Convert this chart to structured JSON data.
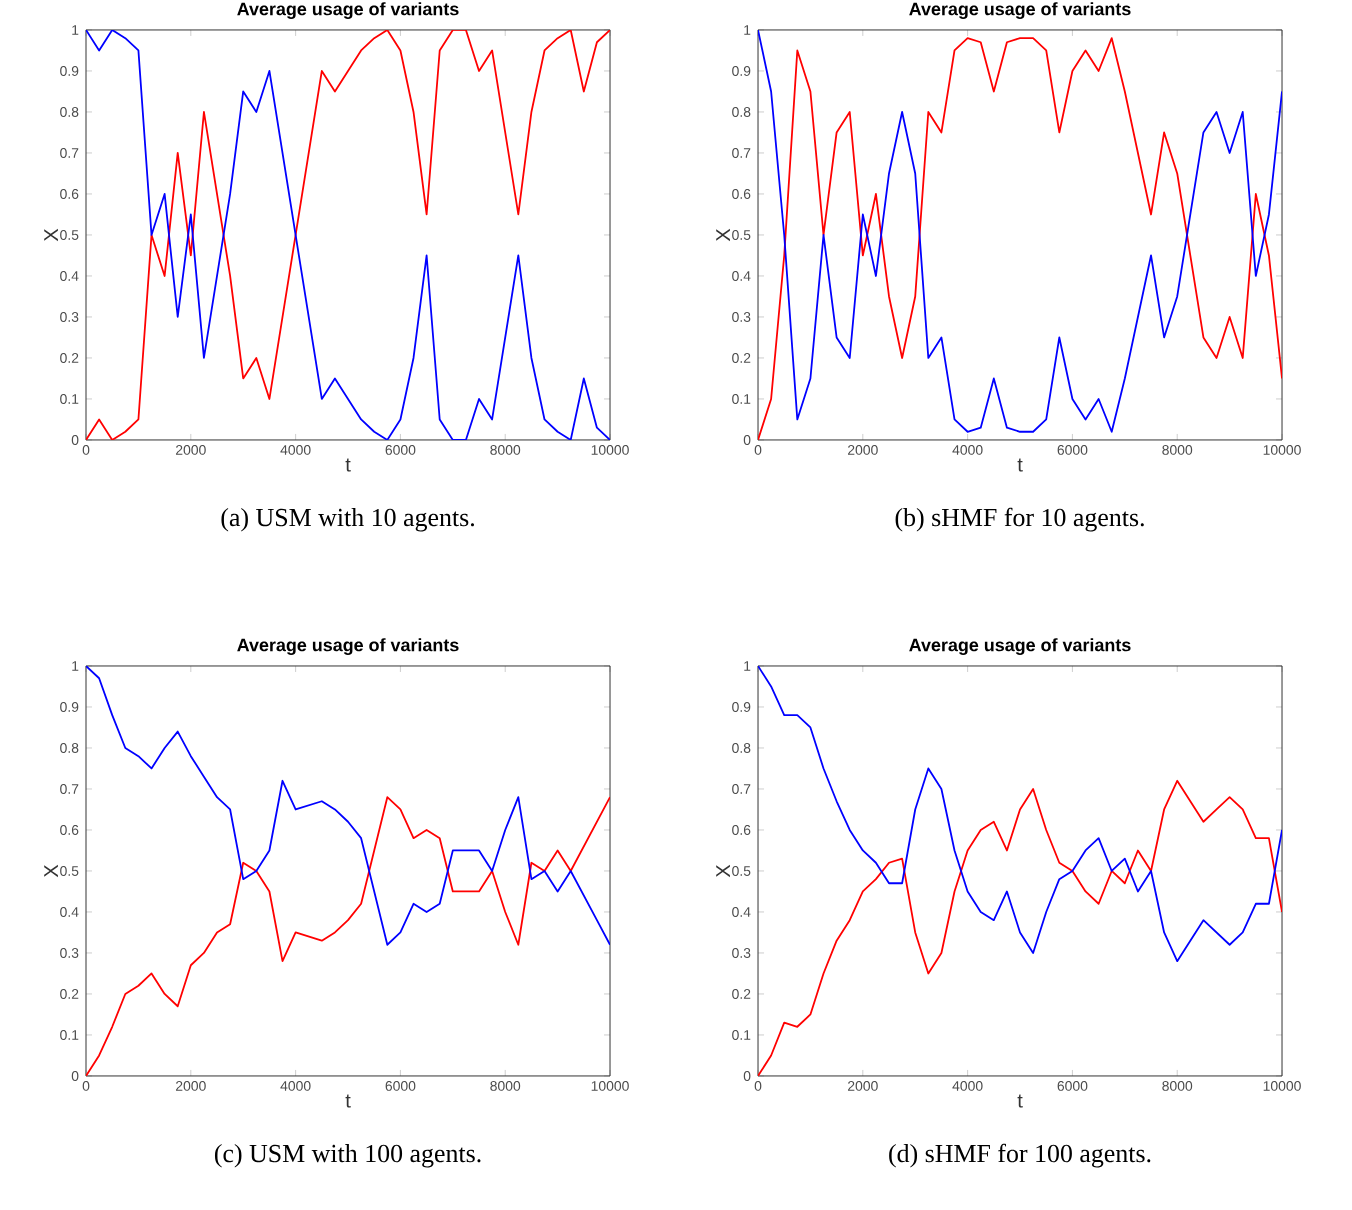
{
  "chart_data": [
    {
      "type": "line",
      "title": "Average usage of variants",
      "xlabel": "t",
      "ylabel": "X",
      "annotations": [
        "(a) USM with 10 agents."
      ],
      "xlim": [
        0,
        10000
      ],
      "ylim": [
        0,
        1
      ],
      "xticks": [
        0,
        2000,
        4000,
        6000,
        8000,
        10000
      ],
      "yticks": [
        0,
        0.1,
        0.2,
        0.3,
        0.4,
        0.5,
        0.6,
        0.7,
        0.8,
        0.9,
        1
      ],
      "x": [
        0,
        250,
        500,
        750,
        1000,
        1250,
        1500,
        1750,
        2000,
        2250,
        2500,
        2750,
        3000,
        3250,
        3500,
        3750,
        4000,
        4250,
        4500,
        4750,
        5000,
        5250,
        5500,
        5750,
        6000,
        6250,
        6500,
        6750,
        7000,
        7250,
        7500,
        7750,
        8000,
        8250,
        8500,
        8750,
        9000,
        9250,
        9500,
        9750,
        10000
      ],
      "series": [
        {
          "color": "#ff0000",
          "values": [
            0,
            0.05,
            0.0,
            0.02,
            0.05,
            0.5,
            0.4,
            0.7,
            0.45,
            0.8,
            0.6,
            0.4,
            0.15,
            0.2,
            0.1,
            0.3,
            0.5,
            0.7,
            0.9,
            0.85,
            0.9,
            0.95,
            0.98,
            1.0,
            0.95,
            0.8,
            0.55,
            0.95,
            1.0,
            1.0,
            0.9,
            0.95,
            0.75,
            0.55,
            0.8,
            0.95,
            0.98,
            1.0,
            0.85,
            0.97,
            1.0
          ]
        },
        {
          "color": "#0000ff",
          "values": [
            1,
            0.95,
            1,
            0.98,
            0.95,
            0.5,
            0.6,
            0.3,
            0.55,
            0.2,
            0.4,
            0.6,
            0.85,
            0.8,
            0.9,
            0.7,
            0.5,
            0.3,
            0.1,
            0.15,
            0.1,
            0.05,
            0.02,
            0.0,
            0.05,
            0.2,
            0.45,
            0.05,
            0.0,
            0.0,
            0.1,
            0.05,
            0.25,
            0.45,
            0.2,
            0.05,
            0.02,
            0.0,
            0.15,
            0.03,
            0.0
          ]
        }
      ]
    },
    {
      "type": "line",
      "title": "Average usage of variants",
      "xlabel": "t",
      "ylabel": "X",
      "annotations": [
        "(b) sHMF for 10 agents."
      ],
      "xlim": [
        0,
        10000
      ],
      "ylim": [
        0,
        1
      ],
      "xticks": [
        0,
        2000,
        4000,
        6000,
        8000,
        10000
      ],
      "yticks": [
        0,
        0.1,
        0.2,
        0.3,
        0.4,
        0.5,
        0.6,
        0.7,
        0.8,
        0.9,
        1
      ],
      "x": [
        0,
        250,
        500,
        750,
        1000,
        1250,
        1500,
        1750,
        2000,
        2250,
        2500,
        2750,
        3000,
        3250,
        3500,
        3750,
        4000,
        4250,
        4500,
        4750,
        5000,
        5250,
        5500,
        5750,
        6000,
        6250,
        6500,
        6750,
        7000,
        7250,
        7500,
        7750,
        8000,
        8250,
        8500,
        8750,
        9000,
        9250,
        9500,
        9750,
        10000
      ],
      "series": [
        {
          "color": "#ff0000",
          "values": [
            0,
            0.1,
            0.45,
            0.95,
            0.85,
            0.5,
            0.75,
            0.8,
            0.45,
            0.6,
            0.35,
            0.2,
            0.35,
            0.8,
            0.75,
            0.95,
            0.98,
            0.97,
            0.85,
            0.97,
            0.98,
            0.98,
            0.95,
            0.75,
            0.9,
            0.95,
            0.9,
            0.98,
            0.85,
            0.7,
            0.55,
            0.75,
            0.65,
            0.45,
            0.25,
            0.2,
            0.3,
            0.2,
            0.6,
            0.45,
            0.15
          ]
        },
        {
          "color": "#0000ff",
          "values": [
            1,
            0.85,
            0.5,
            0.05,
            0.15,
            0.5,
            0.25,
            0.2,
            0.55,
            0.4,
            0.65,
            0.8,
            0.65,
            0.2,
            0.25,
            0.05,
            0.02,
            0.03,
            0.15,
            0.03,
            0.02,
            0.02,
            0.05,
            0.25,
            0.1,
            0.05,
            0.1,
            0.02,
            0.15,
            0.3,
            0.45,
            0.25,
            0.35,
            0.55,
            0.75,
            0.8,
            0.7,
            0.8,
            0.4,
            0.55,
            0.85
          ]
        }
      ]
    },
    {
      "type": "line",
      "title": "Average usage of variants",
      "xlabel": "t",
      "ylabel": "X",
      "annotations": [
        "(c) USM with 100 agents."
      ],
      "xlim": [
        0,
        10000
      ],
      "ylim": [
        0,
        1
      ],
      "xticks": [
        0,
        2000,
        4000,
        6000,
        8000,
        10000
      ],
      "yticks": [
        0,
        0.1,
        0.2,
        0.3,
        0.4,
        0.5,
        0.6,
        0.7,
        0.8,
        0.9,
        1
      ],
      "x": [
        0,
        250,
        500,
        750,
        1000,
        1250,
        1500,
        1750,
        2000,
        2250,
        2500,
        2750,
        3000,
        3250,
        3500,
        3750,
        4000,
        4250,
        4500,
        4750,
        5000,
        5250,
        5500,
        5750,
        6000,
        6250,
        6500,
        6750,
        7000,
        7250,
        7500,
        7750,
        8000,
        8250,
        8500,
        8750,
        9000,
        9250,
        9500,
        9750,
        10000
      ],
      "series": [
        {
          "color": "#ff0000",
          "values": [
            0.0,
            0.05,
            0.12,
            0.2,
            0.22,
            0.25,
            0.2,
            0.17,
            0.27,
            0.3,
            0.35,
            0.37,
            0.52,
            0.5,
            0.45,
            0.28,
            0.35,
            0.34,
            0.33,
            0.35,
            0.38,
            0.42,
            0.55,
            0.68,
            0.65,
            0.58,
            0.6,
            0.58,
            0.45,
            0.45,
            0.45,
            0.5,
            0.4,
            0.32,
            0.52,
            0.5,
            0.55,
            0.5,
            0.56,
            0.62,
            0.68
          ]
        },
        {
          "color": "#0000ff",
          "values": [
            1,
            0.97,
            0.88,
            0.8,
            0.78,
            0.75,
            0.8,
            0.84,
            0.78,
            0.73,
            0.68,
            0.65,
            0.48,
            0.5,
            0.55,
            0.72,
            0.65,
            0.66,
            0.67,
            0.65,
            0.62,
            0.58,
            0.45,
            0.32,
            0.35,
            0.42,
            0.4,
            0.42,
            0.55,
            0.55,
            0.55,
            0.5,
            0.6,
            0.68,
            0.48,
            0.5,
            0.45,
            0.5,
            0.44,
            0.38,
            0.32
          ]
        }
      ]
    },
    {
      "type": "line",
      "title": "Average usage of variants",
      "xlabel": "t",
      "ylabel": "X",
      "annotations": [
        "(d) sHMF for 100 agents."
      ],
      "xlim": [
        0,
        10000
      ],
      "ylim": [
        0,
        1
      ],
      "xticks": [
        0,
        2000,
        4000,
        6000,
        8000,
        10000
      ],
      "yticks": [
        0,
        0.1,
        0.2,
        0.3,
        0.4,
        0.5,
        0.6,
        0.7,
        0.8,
        0.9,
        1
      ],
      "x": [
        0,
        250,
        500,
        750,
        1000,
        1250,
        1500,
        1750,
        2000,
        2250,
        2500,
        2750,
        3000,
        3250,
        3500,
        3750,
        4000,
        4250,
        4500,
        4750,
        5000,
        5250,
        5500,
        5750,
        6000,
        6250,
        6500,
        6750,
        7000,
        7250,
        7500,
        7750,
        8000,
        8250,
        8500,
        8750,
        9000,
        9250,
        9500,
        9750,
        10000
      ],
      "series": [
        {
          "color": "#ff0000",
          "values": [
            0,
            0.05,
            0.13,
            0.12,
            0.15,
            0.25,
            0.33,
            0.38,
            0.45,
            0.48,
            0.52,
            0.53,
            0.35,
            0.25,
            0.3,
            0.45,
            0.55,
            0.6,
            0.62,
            0.55,
            0.65,
            0.7,
            0.6,
            0.52,
            0.5,
            0.45,
            0.42,
            0.5,
            0.47,
            0.55,
            0.5,
            0.65,
            0.72,
            0.67,
            0.62,
            0.65,
            0.68,
            0.65,
            0.58,
            0.58,
            0.4
          ]
        },
        {
          "color": "#0000ff",
          "values": [
            1,
            0.95,
            0.88,
            0.88,
            0.85,
            0.75,
            0.67,
            0.6,
            0.55,
            0.52,
            0.47,
            0.47,
            0.65,
            0.75,
            0.7,
            0.55,
            0.45,
            0.4,
            0.38,
            0.45,
            0.35,
            0.3,
            0.4,
            0.48,
            0.5,
            0.55,
            0.58,
            0.5,
            0.53,
            0.45,
            0.5,
            0.35,
            0.28,
            0.33,
            0.38,
            0.35,
            0.32,
            0.35,
            0.42,
            0.42,
            0.6
          ]
        }
      ]
    }
  ]
}
